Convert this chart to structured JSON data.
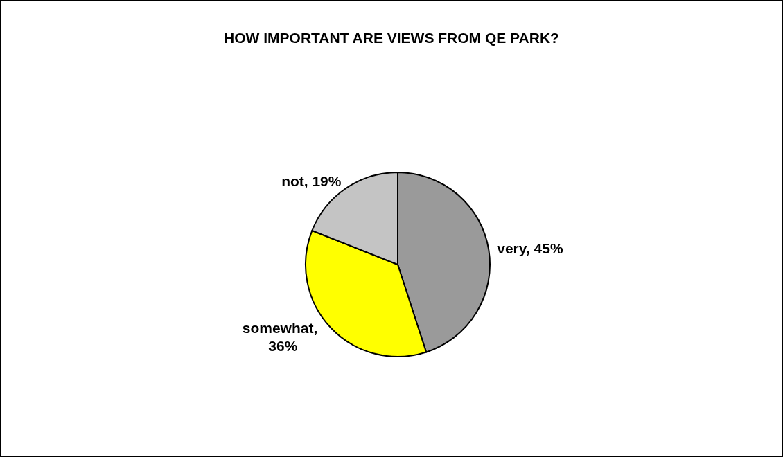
{
  "chart_data": {
    "type": "pie",
    "title": "HOW IMPORTANT ARE VIEWS FROM QE PARK?",
    "categories": [
      "very",
      "somewhat",
      "not"
    ],
    "values": [
      45,
      36,
      19
    ],
    "colors": [
      "#9a9a9a",
      "#ffff00",
      "#c4c4c4"
    ],
    "value_labels": [
      ", 45%",
      ", 36%",
      ", 19%"
    ],
    "legend": false
  }
}
